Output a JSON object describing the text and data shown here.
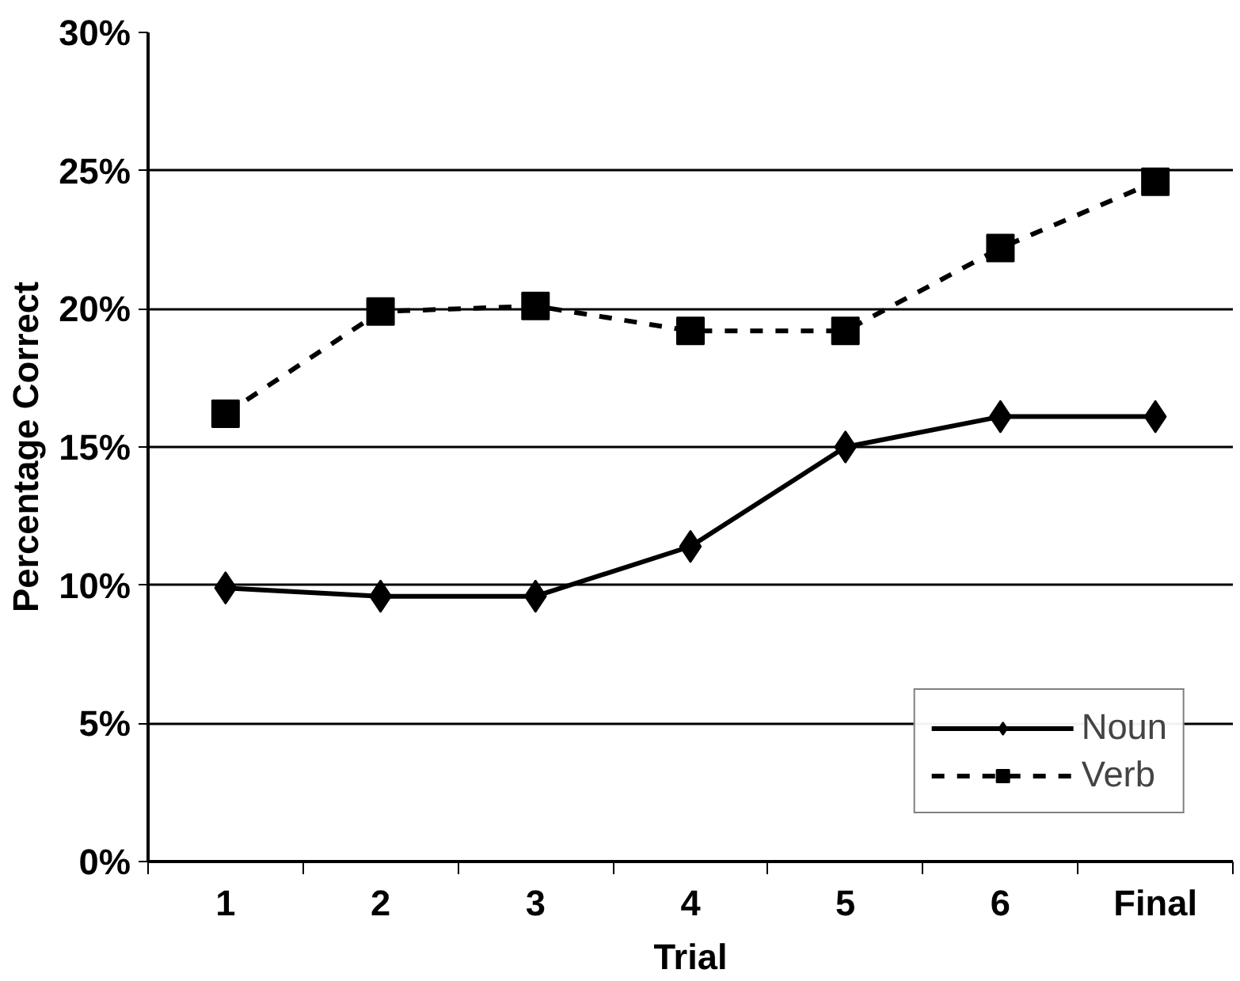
{
  "chart_data": {
    "type": "line",
    "xlabel": "Trial",
    "ylabel": "Percentage Correct",
    "categories": [
      "1",
      "2",
      "3",
      "4",
      "5",
      "6",
      "Final"
    ],
    "series": [
      {
        "name": "Noun",
        "color": "#000000",
        "marker": "diamond",
        "line_style": "solid",
        "values": [
          9.9,
          9.6,
          9.6,
          11.4,
          15.0,
          16.1,
          16.1
        ]
      },
      {
        "name": "Verb",
        "color": "#000000",
        "marker": "square",
        "line_style": "dashed",
        "values": [
          16.2,
          19.9,
          20.1,
          19.2,
          19.2,
          22.2,
          24.6
        ]
      }
    ],
    "ylim": [
      0,
      30
    ],
    "yticks": [
      {
        "value": 0,
        "label": "0%"
      },
      {
        "value": 5,
        "label": "5%"
      },
      {
        "value": 10,
        "label": "10%"
      },
      {
        "value": 15,
        "label": "15%"
      },
      {
        "value": 20,
        "label": "20%"
      },
      {
        "value": 25,
        "label": "25%"
      },
      {
        "value": 30,
        "label": "30%"
      }
    ],
    "grid": "y",
    "legend": "bottom right"
  }
}
